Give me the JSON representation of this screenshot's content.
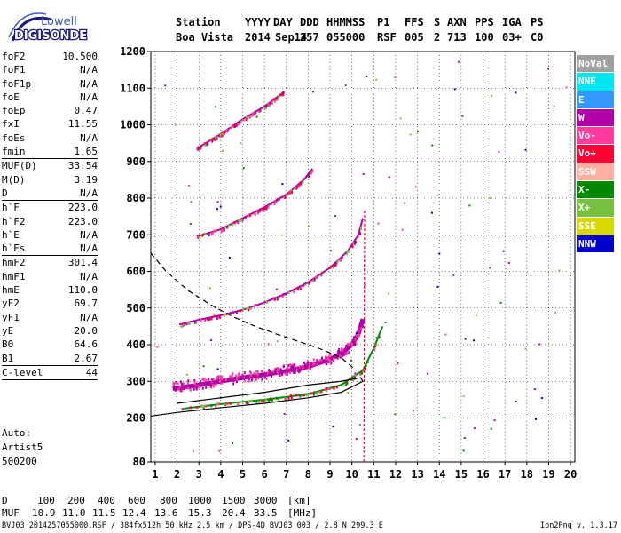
{
  "logo": {
    "line1": "Lowell",
    "line2": "DIGISONDE"
  },
  "header": {
    "labels": [
      "Station",
      "YYYY",
      "DAY",
      "DDD",
      "HHMMSS",
      "P1",
      "FFS",
      "S",
      "AXN",
      "PPS",
      "IGA",
      "PS"
    ],
    "values": [
      "Boa Vista",
      "2014",
      "Sep14",
      "257",
      "055000",
      "RSF",
      "005",
      "2",
      "713",
      "100",
      "03+",
      "C0"
    ]
  },
  "params": [
    {
      "name": "foF2",
      "value": "10.500"
    },
    {
      "name": "foF1",
      "value": "N/A"
    },
    {
      "name": "foF1p",
      "value": "N/A"
    },
    {
      "name": "foE",
      "value": "N/A"
    },
    {
      "name": "foEp",
      "value": "0.47"
    },
    {
      "name": "fxI",
      "value": "11.55"
    },
    {
      "name": "foEs",
      "value": "N/A"
    },
    {
      "name": "fmin",
      "value": "1.65"
    },
    {
      "sep": true
    },
    {
      "name": "MUF(D)",
      "value": "33.54"
    },
    {
      "name": "M(D)",
      "value": "3.19"
    },
    {
      "name": "D",
      "value": "N/A"
    },
    {
      "sep": true
    },
    {
      "name": "h`F",
      "value": "223.0"
    },
    {
      "name": "h`F2",
      "value": "223.0"
    },
    {
      "name": "h`E",
      "value": "N/A"
    },
    {
      "name": "h`Es",
      "value": "N/A"
    },
    {
      "sep": true
    },
    {
      "name": "hmF2",
      "value": "301.4"
    },
    {
      "name": "hmF1",
      "value": "N/A"
    },
    {
      "name": "hmE",
      "value": "110.0"
    },
    {
      "name": "yF2",
      "value": "69.7"
    },
    {
      "name": "yF1",
      "value": "N/A"
    },
    {
      "name": "yE",
      "value": "20.0"
    },
    {
      "name": "B0",
      "value": "64.6"
    },
    {
      "name": "B1",
      "value": "2.67"
    },
    {
      "sep": true
    },
    {
      "name": "C-level",
      "value": "44"
    },
    {
      "sep": true
    }
  ],
  "artist": {
    "line1": "Auto:",
    "line2": "Artist5",
    "line3": "500200"
  },
  "legend": [
    {
      "label": "NoVal",
      "bg": "#a0a0a0",
      "fg": "#ffffff"
    },
    {
      "label": "NNE",
      "bg": "#00e5ee",
      "fg": "#ffffff"
    },
    {
      "label": "E",
      "bg": "#3399ff",
      "fg": "#ffffff"
    },
    {
      "label": "W",
      "bg": "#b000a8",
      "fg": "#ffffff"
    },
    {
      "label": "Vo-",
      "bg": "#ff3ba0",
      "fg": "#ffffff"
    },
    {
      "label": "Vo+",
      "bg": "#ff0033",
      "fg": "#ffffff"
    },
    {
      "label": "SSW",
      "bg": "#ffb0a0",
      "fg": "#ffffff"
    },
    {
      "label": "X-",
      "bg": "#008800",
      "fg": "#ffffff"
    },
    {
      "label": "X+",
      "bg": "#77c040",
      "fg": "#ffffff"
    },
    {
      "label": "SSE",
      "bg": "#d8d800",
      "fg": "#ffffff"
    },
    {
      "label": "NNW",
      "bg": "#0000cc",
      "fg": "#ffffff"
    }
  ],
  "muf_table": {
    "d_label": "D",
    "d_values": [
      "100",
      "200",
      "400",
      "600",
      "800",
      "1000",
      "1500",
      "3000"
    ],
    "d_unit": "[km]",
    "m_label": "MUF",
    "m_values": [
      "10.9",
      "11.0",
      "11.5",
      "12.4",
      "13.6",
      "15.3",
      "20.4",
      "33.5"
    ],
    "m_unit": "[MHz]"
  },
  "footer": "BVJ03_2014257055000.RSF / 384fx512h 50 kHz 2.5 km / DPS-4D BVJ03 003 / 2.8 N 299.3 E",
  "version": "Ion2Png v. 1.3.17",
  "chart_data": {
    "type": "scatter",
    "x_ticks": [
      1,
      2,
      3,
      4,
      5,
      6,
      7,
      8,
      9,
      10,
      11,
      12,
      13,
      14,
      15,
      16,
      17,
      18,
      19,
      20
    ],
    "y_ticks": [
      80,
      200,
      300,
      400,
      500,
      600,
      700,
      800,
      900,
      1000,
      1100,
      1200
    ],
    "xlim": [
      0.8,
      20.2
    ],
    "ylim": [
      80,
      1200
    ],
    "grid": true,
    "traces": [
      {
        "name": "o-trace F2",
        "color": "#b000a8",
        "x": [
          1.8,
          3.0,
          4.0,
          5.0,
          6.0,
          7.0,
          8.0,
          9.0,
          9.6,
          10.0,
          10.3,
          10.5
        ],
        "y": [
          280,
          290,
          300,
          310,
          318,
          328,
          340,
          360,
          380,
          400,
          430,
          470
        ]
      },
      {
        "name": "2nd hop",
        "color": "#b000a8",
        "x": [
          2.1,
          3.0,
          4.0,
          5.0,
          6.0,
          7.0,
          8.0,
          9.0,
          9.8,
          10.3,
          10.5
        ],
        "y": [
          455,
          468,
          480,
          495,
          515,
          540,
          570,
          610,
          655,
          700,
          745
        ]
      },
      {
        "name": "3rd hop",
        "color": "#b000a8",
        "x": [
          2.9,
          4.0,
          5.0,
          6.0,
          7.0,
          7.8,
          8.2
        ],
        "y": [
          695,
          715,
          745,
          775,
          810,
          850,
          880
        ]
      },
      {
        "name": "4th hop",
        "color": "#b000a8",
        "x": [
          2.9,
          4.0,
          5.0,
          6.0,
          6.9
        ],
        "y": [
          935,
          975,
          1015,
          1050,
          1090
        ]
      },
      {
        "name": "x-trace",
        "color": "#008800",
        "x": [
          2.2,
          4.0,
          6.0,
          8.0,
          9.5,
          10.5,
          11.0,
          11.4
        ],
        "y": [
          225,
          238,
          250,
          265,
          290,
          330,
          390,
          450
        ]
      },
      {
        "name": "E layer",
        "color": "#ff0033",
        "x": [
          10.55,
          10.58
        ],
        "y": [
          80,
          770
        ]
      }
    ],
    "profile": {
      "x": [
        0.8,
        2.0,
        4.0,
        6.0,
        8.0,
        9.5,
        10.5,
        10.4,
        9.5,
        8.0,
        6.0,
        4.0,
        2.0
      ],
      "y": [
        205,
        215,
        228,
        240,
        255,
        270,
        300,
        310,
        300,
        290,
        270,
        255,
        240
      ]
    },
    "dashed": {
      "x": [
        0.8,
        1.5,
        2.5,
        3.5,
        4.5,
        5.5,
        6.5,
        7.5,
        8.5,
        9.5,
        10.2
      ],
      "y": [
        650,
        600,
        548,
        510,
        478,
        452,
        430,
        410,
        390,
        365,
        330
      ]
    }
  }
}
